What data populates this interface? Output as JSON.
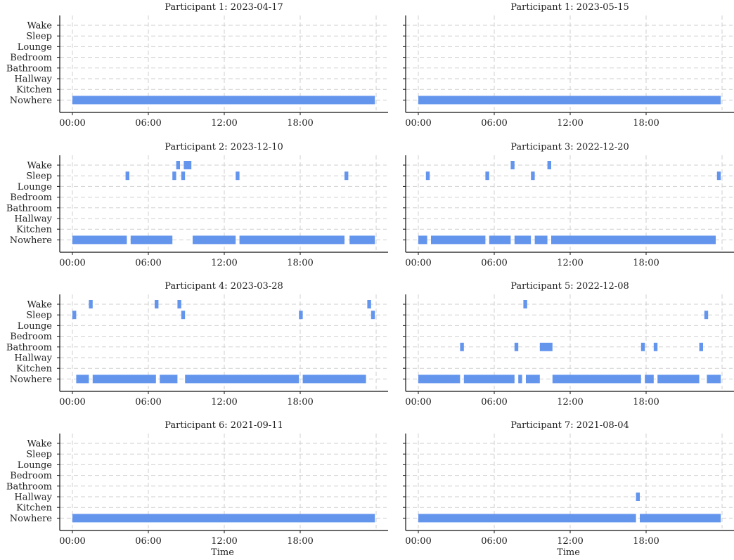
{
  "chart_data": {
    "type": "timeline",
    "x_ticks": [
      "00:00",
      "06:00",
      "12:00",
      "18:00"
    ],
    "xlim_hours": [
      -1,
      24
    ],
    "y_categories": [
      "Wake",
      "Sleep",
      "Lounge",
      "Bedroom",
      "Bathroom",
      "Hallway",
      "Kitchen",
      "Nowhere"
    ],
    "xlabel": "Time",
    "colors": {
      "segment": "#6495ED"
    },
    "grid": true,
    "panels": [
      {
        "title": "Participant 1:  2023-04-17",
        "segments": [
          {
            "category": "Nowhere",
            "start": 0.0,
            "end": 23.9
          }
        ]
      },
      {
        "title": "Participant 1:  2023-05-15",
        "segments": [
          {
            "category": "Nowhere",
            "start": 0.0,
            "end": 23.9
          }
        ]
      },
      {
        "title": "Participant 2:  2023-12-10",
        "segments": [
          {
            "category": "Wake",
            "start": 8.2,
            "end": 8.5
          },
          {
            "category": "Wake",
            "start": 8.8,
            "end": 9.4
          },
          {
            "category": "Sleep",
            "start": 4.2,
            "end": 4.5
          },
          {
            "category": "Sleep",
            "start": 7.9,
            "end": 8.2
          },
          {
            "category": "Sleep",
            "start": 8.6,
            "end": 8.9
          },
          {
            "category": "Sleep",
            "start": 12.9,
            "end": 13.2
          },
          {
            "category": "Sleep",
            "start": 21.5,
            "end": 21.8
          },
          {
            "category": "Nowhere",
            "start": 0.0,
            "end": 4.3
          },
          {
            "category": "Nowhere",
            "start": 4.6,
            "end": 7.9
          },
          {
            "category": "Nowhere",
            "start": 9.5,
            "end": 12.9
          },
          {
            "category": "Nowhere",
            "start": 13.2,
            "end": 21.5
          },
          {
            "category": "Nowhere",
            "start": 21.9,
            "end": 23.9
          }
        ]
      },
      {
        "title": "Participant 3:  2022-12-20",
        "segments": [
          {
            "category": "Wake",
            "start": 7.3,
            "end": 7.6
          },
          {
            "category": "Wake",
            "start": 10.2,
            "end": 10.5
          },
          {
            "category": "Sleep",
            "start": 0.6,
            "end": 0.9
          },
          {
            "category": "Sleep",
            "start": 5.3,
            "end": 5.6
          },
          {
            "category": "Sleep",
            "start": 8.9,
            "end": 9.2
          },
          {
            "category": "Sleep",
            "start": 23.6,
            "end": 23.9
          },
          {
            "category": "Nowhere",
            "start": 0.0,
            "end": 0.7
          },
          {
            "category": "Nowhere",
            "start": 1.0,
            "end": 5.3
          },
          {
            "category": "Nowhere",
            "start": 5.6,
            "end": 7.3
          },
          {
            "category": "Nowhere",
            "start": 7.6,
            "end": 8.9
          },
          {
            "category": "Nowhere",
            "start": 9.2,
            "end": 10.2
          },
          {
            "category": "Nowhere",
            "start": 10.5,
            "end": 23.5
          }
        ]
      },
      {
        "title": "Participant 4:  2023-03-28",
        "segments": [
          {
            "category": "Wake",
            "start": 1.3,
            "end": 1.6
          },
          {
            "category": "Wake",
            "start": 6.5,
            "end": 6.8
          },
          {
            "category": "Wake",
            "start": 8.3,
            "end": 8.6
          },
          {
            "category": "Wake",
            "start": 23.3,
            "end": 23.6
          },
          {
            "category": "Sleep",
            "start": 0.0,
            "end": 0.3
          },
          {
            "category": "Sleep",
            "start": 8.6,
            "end": 8.9
          },
          {
            "category": "Sleep",
            "start": 17.9,
            "end": 18.2
          },
          {
            "category": "Sleep",
            "start": 23.6,
            "end": 23.9
          },
          {
            "category": "Nowhere",
            "start": 0.3,
            "end": 1.3
          },
          {
            "category": "Nowhere",
            "start": 1.6,
            "end": 6.6
          },
          {
            "category": "Nowhere",
            "start": 6.9,
            "end": 8.3
          },
          {
            "category": "Nowhere",
            "start": 8.9,
            "end": 17.9
          },
          {
            "category": "Nowhere",
            "start": 18.2,
            "end": 23.2
          }
        ]
      },
      {
        "title": "Participant 5:  2022-12-08",
        "segments": [
          {
            "category": "Wake",
            "start": 8.3,
            "end": 8.6
          },
          {
            "category": "Sleep",
            "start": 22.6,
            "end": 22.9
          },
          {
            "category": "Bathroom",
            "start": 3.3,
            "end": 3.6
          },
          {
            "category": "Bathroom",
            "start": 7.6,
            "end": 7.9
          },
          {
            "category": "Bathroom",
            "start": 9.6,
            "end": 10.6
          },
          {
            "category": "Bathroom",
            "start": 17.6,
            "end": 17.9
          },
          {
            "category": "Bathroom",
            "start": 18.6,
            "end": 18.9
          },
          {
            "category": "Bathroom",
            "start": 22.2,
            "end": 22.5
          },
          {
            "category": "Nowhere",
            "start": 0.0,
            "end": 3.3
          },
          {
            "category": "Nowhere",
            "start": 3.6,
            "end": 7.6
          },
          {
            "category": "Nowhere",
            "start": 7.9,
            "end": 8.2
          },
          {
            "category": "Nowhere",
            "start": 8.5,
            "end": 9.6
          },
          {
            "category": "Nowhere",
            "start": 10.6,
            "end": 17.6
          },
          {
            "category": "Nowhere",
            "start": 17.9,
            "end": 18.6
          },
          {
            "category": "Nowhere",
            "start": 18.9,
            "end": 22.2
          },
          {
            "category": "Nowhere",
            "start": 22.8,
            "end": 23.9
          }
        ]
      },
      {
        "title": "Participant 6:  2021-09-11",
        "segments": [
          {
            "category": "Nowhere",
            "start": 0.0,
            "end": 23.9
          }
        ]
      },
      {
        "title": "Participant 7:  2021-08-04",
        "segments": [
          {
            "category": "Hallway",
            "start": 17.2,
            "end": 17.5
          },
          {
            "category": "Nowhere",
            "start": 0.0,
            "end": 17.2
          },
          {
            "category": "Nowhere",
            "start": 17.5,
            "end": 23.9
          }
        ]
      }
    ]
  }
}
